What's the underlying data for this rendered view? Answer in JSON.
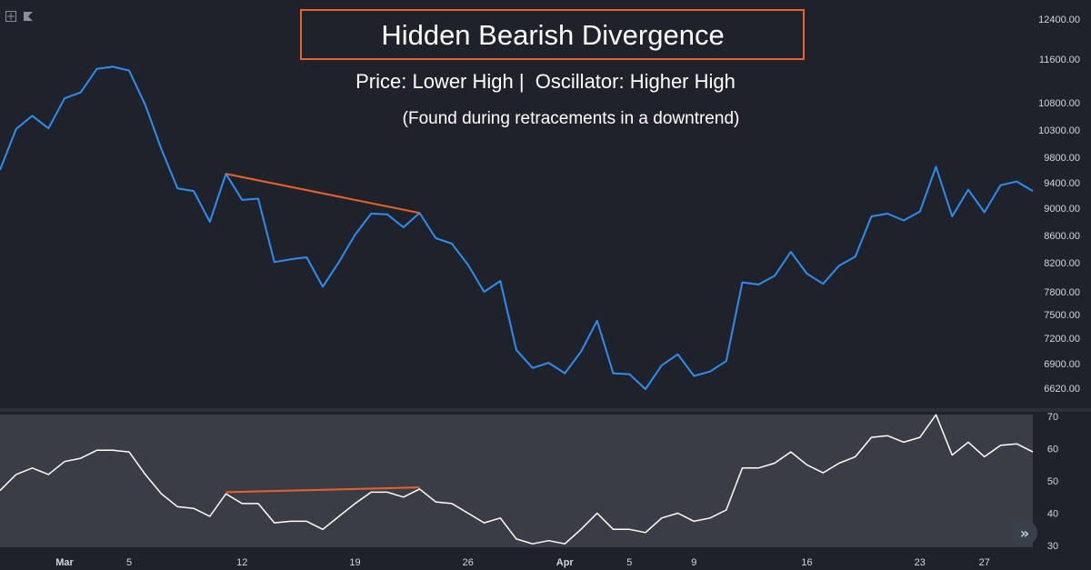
{
  "annotations": {
    "title": "Hidden Bearish Divergence",
    "subtitle": "Price: Lower High |  Oscillator: Higher High",
    "note": "(Found during retracements in a downtrend)",
    "box_color": "#e8632b"
  },
  "colors": {
    "price_line": "#2f8cf0",
    "oscillator_line": "#ffffff",
    "divergence": "#e8632b",
    "background": "#1f222b",
    "oscillator_panel": "#3a3d45",
    "axis_text": "#d3d5dc"
  },
  "icons": {
    "tool_left": "crosshair-square-icon",
    "tool_right": "flag-icon",
    "scroll": "double-chevron-right-icon"
  },
  "chart_data": [
    {
      "type": "line",
      "name": "price",
      "series": [
        {
          "values": [
            9600,
            10320,
            10560,
            10330,
            10880,
            10990,
            11420,
            11460,
            11390,
            10760,
            9950,
            9310,
            9270,
            8800,
            9540,
            9130,
            9150,
            8210,
            8250,
            8280,
            7870,
            8210,
            8610,
            8920,
            8910,
            8720,
            8930,
            8560,
            8480,
            8170,
            7800,
            7950,
            7060,
            6850,
            6910,
            6790,
            7040,
            7420,
            6790,
            6780,
            6610,
            6880,
            7010,
            6760,
            6810,
            6930,
            7930,
            7900,
            8020,
            8360,
            8050,
            7910,
            8160,
            8290,
            8880,
            8920,
            8820,
            8950,
            9650,
            8880,
            9290,
            8940,
            9360,
            9420,
            9270
          ]
        }
      ],
      "divergence_line": {
        "from_index": 14,
        "to_index": 26,
        "from_value": 9540,
        "to_value": 8930
      },
      "y_ticks": [
        "12400.00",
        "11600.00",
        "10800.00",
        "10300.00",
        "9800.00",
        "9400.00",
        "9000.00",
        "8600.00",
        "8200.00",
        "7800.00",
        "7500.00",
        "7200.00",
        "6900.00",
        "6620.00"
      ]
    },
    {
      "type": "line",
      "name": "oscillator",
      "series": [
        {
          "values": [
            47,
            52,
            54,
            52,
            56,
            57,
            59.5,
            59.5,
            59,
            52,
            46,
            42,
            41.5,
            39,
            46,
            43,
            43,
            37,
            37.5,
            37.5,
            35,
            39,
            43,
            46.5,
            46.5,
            45,
            47.5,
            43.5,
            43,
            40,
            37,
            38.5,
            32,
            30.5,
            31.5,
            30.5,
            35,
            40,
            35,
            35,
            34,
            38.5,
            40,
            37.5,
            38.5,
            41,
            54,
            54,
            55.5,
            59,
            55,
            52.5,
            55.5,
            57.5,
            63.5,
            64,
            62,
            63.5,
            70.5,
            58,
            62,
            57.5,
            61,
            61.5,
            59
          ]
        }
      ],
      "divergence_line": {
        "from_index": 14,
        "to_index": 26,
        "from_value": 46.5,
        "to_value": 48
      },
      "y_ticks": [
        70,
        60,
        50,
        40,
        30
      ]
    }
  ],
  "x_axis": {
    "labels": [
      {
        "text": "Mar",
        "index": 4,
        "bold": true
      },
      {
        "text": "5",
        "index": 8
      },
      {
        "text": "12",
        "index": 15
      },
      {
        "text": "19",
        "index": 22
      },
      {
        "text": "26",
        "index": 29
      },
      {
        "text": "Apr",
        "index": 35,
        "bold": true
      },
      {
        "text": "5",
        "index": 39
      },
      {
        "text": "9",
        "index": 43
      },
      {
        "text": "16",
        "index": 50
      },
      {
        "text": "23",
        "index": 57
      },
      {
        "text": "27",
        "index": 61
      }
    ]
  }
}
